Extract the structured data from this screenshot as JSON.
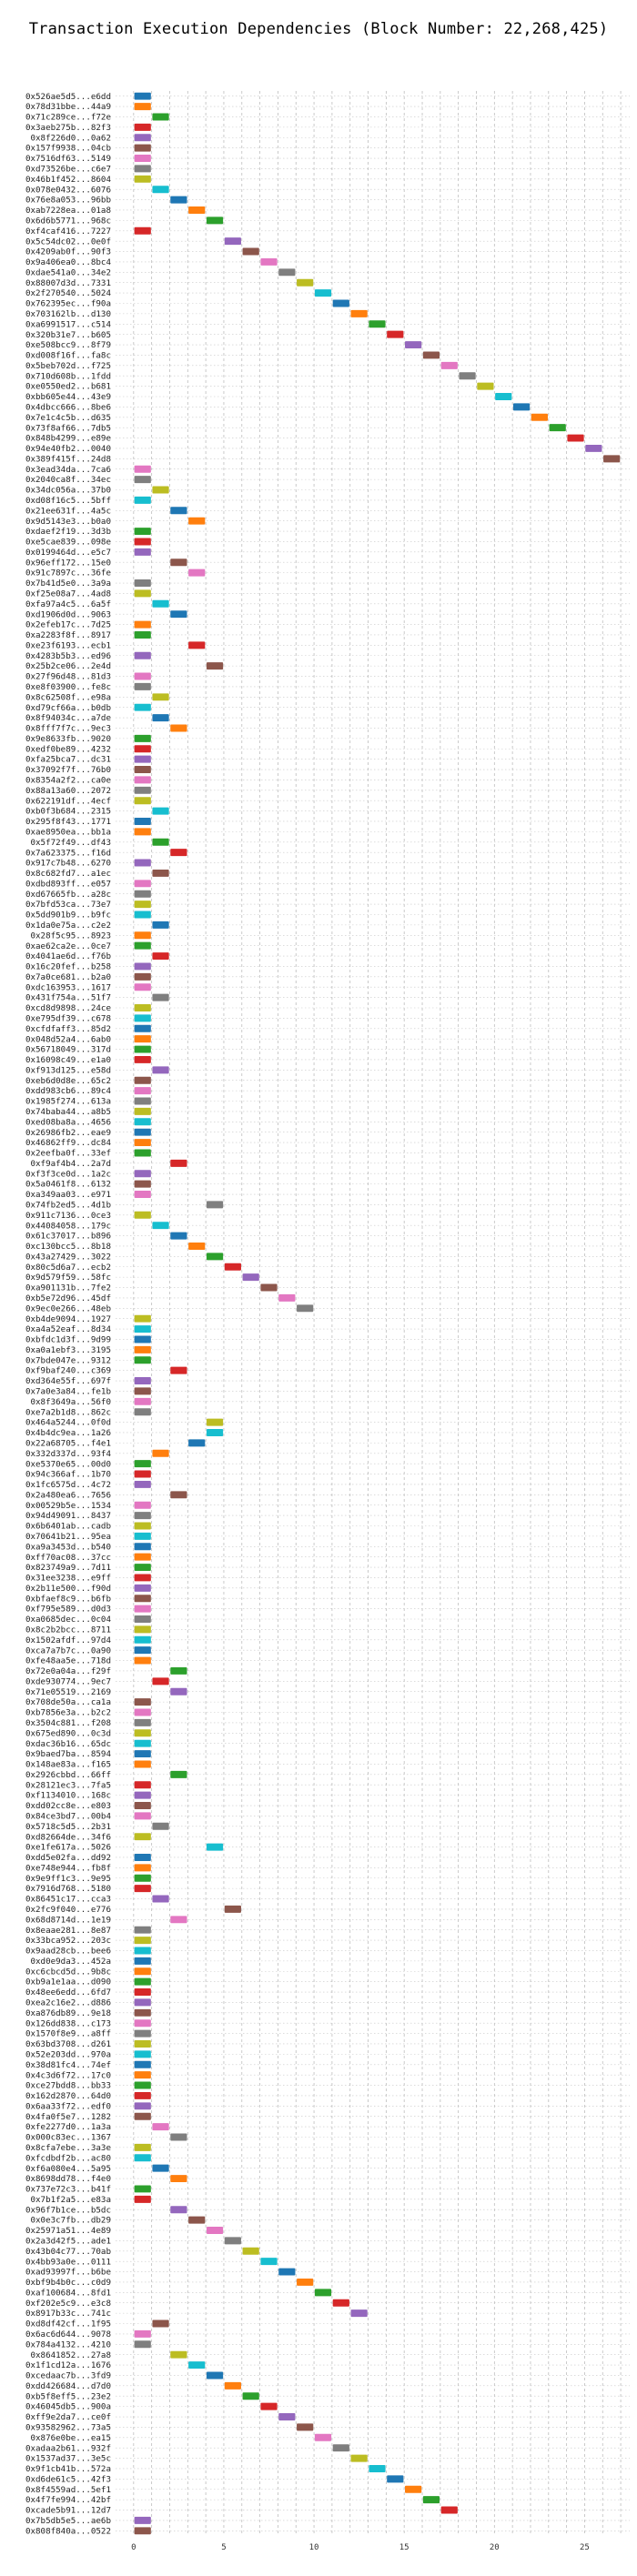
{
  "chart_data": {
    "type": "bar",
    "title": "Transaction Execution Dependencies (Block Number: 22,268,425)",
    "xlabel": "",
    "ylabel": "",
    "xlim": [
      -1,
      27.5
    ],
    "x_ticks": [
      0,
      5,
      10,
      15,
      20,
      25
    ],
    "grid": "vertical dashed lines",
    "palette": [
      "#1f77b4",
      "#ff7f0e",
      "#2ca02c",
      "#d62728",
      "#9467bd",
      "#8c564b",
      "#e377c2",
      "#7f7f7f",
      "#bcbd22",
      "#17becf"
    ],
    "transactions": [
      {
        "label": "0x526ae5d5...e6dd",
        "start": 0
      },
      {
        "label": "0x78d31bbe...44a9",
        "start": 0
      },
      {
        "label": "0x71c289ce...f72e",
        "start": 1
      },
      {
        "label": "0x3aeb275b...82f3",
        "start": 0
      },
      {
        "label": "0x8f226d0...0a62",
        "start": 0
      },
      {
        "label": "0x157f9938...04cb",
        "start": 0
      },
      {
        "label": "0x7516df63...5149",
        "start": 0
      },
      {
        "label": "0xd73526be...c6e7",
        "start": 0
      },
      {
        "label": "0x46b1f452...8604",
        "start": 0
      },
      {
        "label": "0x078e0432...6076",
        "start": 1
      },
      {
        "label": "0x76e8a053...96bb",
        "start": 2
      },
      {
        "label": "0xab7228ea...01a8",
        "start": 3
      },
      {
        "label": "0x6d6b5771...968c",
        "start": 4
      },
      {
        "label": "0xf4caf416...7227",
        "start": 0
      },
      {
        "label": "0x5c54dc02...0e0f",
        "start": 5
      },
      {
        "label": "0x4209ab0f...90f3",
        "start": 6
      },
      {
        "label": "0x9a406ea0...8bc4",
        "start": 7
      },
      {
        "label": "0xdae541a0...34e2",
        "start": 8
      },
      {
        "label": "0x88007d3d...7331",
        "start": 9
      },
      {
        "label": "0x2f270540...5024",
        "start": 10
      },
      {
        "label": "0x762395ec...f90a",
        "start": 11
      },
      {
        "label": "0x703162lb...d130",
        "start": 12
      },
      {
        "label": "0xa6991517...c514",
        "start": 13
      },
      {
        "label": "0x320b31e7...b605",
        "start": 14
      },
      {
        "label": "0xe508bcc9...8f79",
        "start": 15
      },
      {
        "label": "0xd008f16f...fa8c",
        "start": 16
      },
      {
        "label": "0x5beb702d...f725",
        "start": 17
      },
      {
        "label": "0x710d608b...1fdd",
        "start": 18
      },
      {
        "label": "0xe0550ed2...b681",
        "start": 19
      },
      {
        "label": "0xbb605e44...43e9",
        "start": 20
      },
      {
        "label": "0x4dbcc666...8be6",
        "start": 21
      },
      {
        "label": "0x7e1c4c5b...d635",
        "start": 22
      },
      {
        "label": "0x73f8af66...7db5",
        "start": 23
      },
      {
        "label": "0x848b4299...e89e",
        "start": 24
      },
      {
        "label": "0x94e40fb2...0040",
        "start": 25
      },
      {
        "label": "0x389f415f...24d8",
        "start": 26
      },
      {
        "label": "0x3ead34da...7ca6",
        "start": 0
      },
      {
        "label": "0x2040ca8f...34ec",
        "start": 0
      },
      {
        "label": "0x34dc056a...37b0",
        "start": 1
      },
      {
        "label": "0xd08f16c5...5bff",
        "start": 0
      },
      {
        "label": "0x21ee631f...4a5c",
        "start": 2
      },
      {
        "label": "0x9d5143e3...b0a0",
        "start": 3
      },
      {
        "label": "0xdaef2f19...3d3b",
        "start": 0
      },
      {
        "label": "0xe5cae839...098e",
        "start": 0
      },
      {
        "label": "0x0199464d...e5c7",
        "start": 0
      },
      {
        "label": "0x96eff172...15e0",
        "start": 2
      },
      {
        "label": "0x91c7897c...36fe",
        "start": 3
      },
      {
        "label": "0x7b41d5e0...3a9a",
        "start": 0
      },
      {
        "label": "0xf25e08a7...4ad8",
        "start": 0
      },
      {
        "label": "0xfa97a4c5...6a5f",
        "start": 1
      },
      {
        "label": "0xd1906d0d...9063",
        "start": 2
      },
      {
        "label": "0x2efeb17c...7d25",
        "start": 0
      },
      {
        "label": "0xa2283f8f...8917",
        "start": 0
      },
      {
        "label": "0xe23f6193...ecb1",
        "start": 3
      },
      {
        "label": "0x4283b5b3...ed96",
        "start": 0
      },
      {
        "label": "0x25b2ce06...2e4d",
        "start": 4
      },
      {
        "label": "0x27f96d48...81d3",
        "start": 0
      },
      {
        "label": "0xe8f03900...fe8c",
        "start": 0
      },
      {
        "label": "0x8c62508f...e98a",
        "start": 1
      },
      {
        "label": "0xd79cf66a...b0db",
        "start": 0
      },
      {
        "label": "0x8f94034c...a7de",
        "start": 1
      },
      {
        "label": "0x8fff7f7c...9ec3",
        "start": 2
      },
      {
        "label": "0x9e8633fb...9020",
        "start": 0
      },
      {
        "label": "0xedf0be89...4232",
        "start": 0
      },
      {
        "label": "0xfa25bca7...dc31",
        "start": 0
      },
      {
        "label": "0x37092f7f...76b0",
        "start": 0
      },
      {
        "label": "0x8354a2f2...ca0e",
        "start": 0
      },
      {
        "label": "0x88a13a60...2072",
        "start": 0
      },
      {
        "label": "0x622191df...4ecf",
        "start": 0
      },
      {
        "label": "0xb0f3b684...2315",
        "start": 1
      },
      {
        "label": "0x295f8f43...1771",
        "start": 0
      },
      {
        "label": "0xae8950ea...bb1a",
        "start": 0
      },
      {
        "label": "0x5f72f49...df43",
        "start": 1
      },
      {
        "label": "0x7a623375...f16d",
        "start": 2
      },
      {
        "label": "0x917c7b48...6270",
        "start": 0
      },
      {
        "label": "0x8c682fd7...a1ec",
        "start": 1
      },
      {
        "label": "0xdbd893ff...e057",
        "start": 0
      },
      {
        "label": "0xd67665fb...a28c",
        "start": 0
      },
      {
        "label": "0x7bfd53ca...73e7",
        "start": 0
      },
      {
        "label": "0x5dd901b9...b9fc",
        "start": 0
      },
      {
        "label": "0x1da0e75a...c2e2",
        "start": 1
      },
      {
        "label": "0x28f5c95...8923",
        "start": 0
      },
      {
        "label": "0xae62ca2e...0ce7",
        "start": 0
      },
      {
        "label": "0x4041ae6d...f76b",
        "start": 1
      },
      {
        "label": "0x16c20fef...b258",
        "start": 0
      },
      {
        "label": "0x7a0ce681...b2a0",
        "start": 0
      },
      {
        "label": "0xdc163953...1617",
        "start": 0
      },
      {
        "label": "0x431f754a...51f7",
        "start": 1
      },
      {
        "label": "0xcd8d9898...24ce",
        "start": 0
      },
      {
        "label": "0xe795df39...c678",
        "start": 0
      },
      {
        "label": "0xcfdfaff3...85d2",
        "start": 0
      },
      {
        "label": "0x048d52a4...6ab0",
        "start": 0
      },
      {
        "label": "0x56718049...317d",
        "start": 0
      },
      {
        "label": "0x16098c49...e1a0",
        "start": 0
      },
      {
        "label": "0xf913d125...e58d",
        "start": 1
      },
      {
        "label": "0xeb6d0d8e...65c2",
        "start": 0
      },
      {
        "label": "0xdd983cb6...89c4",
        "start": 0
      },
      {
        "label": "0x1985f274...613a",
        "start": 0
      },
      {
        "label": "0x74baba44...a8b5",
        "start": 0
      },
      {
        "label": "0xed08ba8a...4656",
        "start": 0
      },
      {
        "label": "0x26986fb2...eae9",
        "start": 0
      },
      {
        "label": "0x46862ff9...dc84",
        "start": 0
      },
      {
        "label": "0x2eefba0f...33ef",
        "start": 0
      },
      {
        "label": "0xf9af4b4...2a7d",
        "start": 2
      },
      {
        "label": "0xf3f3ce0d...1a2c",
        "start": 0
      },
      {
        "label": "0x5a0461f8...6132",
        "start": 0
      },
      {
        "label": "0xa349aa03...e971",
        "start": 0
      },
      {
        "label": "0x74fb2ed5...4d1b",
        "start": 4
      },
      {
        "label": "0x911c7136...0ce3",
        "start": 0
      },
      {
        "label": "0x44084058...179c",
        "start": 1
      },
      {
        "label": "0x61c37017...b896",
        "start": 2
      },
      {
        "label": "0xc130bcc5...8b18",
        "start": 3
      },
      {
        "label": "0x43a27429...3022",
        "start": 4
      },
      {
        "label": "0x80c5d6a7...ecb2",
        "start": 5
      },
      {
        "label": "0x9d579f59...58fc",
        "start": 6
      },
      {
        "label": "0xa901131b...7fe2",
        "start": 7
      },
      {
        "label": "0xb5e72d96...45df",
        "start": 8
      },
      {
        "label": "0x9ec0e266...48eb",
        "start": 9
      },
      {
        "label": "0xb4de9094...1927",
        "start": 0
      },
      {
        "label": "0xa4a52eaf...8d34",
        "start": 0
      },
      {
        "label": "0xbfdc1d3f...9d99",
        "start": 0
      },
      {
        "label": "0xa0a1ebf3...3195",
        "start": 0
      },
      {
        "label": "0x7bde047e...9312",
        "start": 0
      },
      {
        "label": "0xf9baf240...c369",
        "start": 2
      },
      {
        "label": "0xd364e55f...697f",
        "start": 0
      },
      {
        "label": "0x7a0e3a84...fe1b",
        "start": 0
      },
      {
        "label": "0x8f3649a...56f0",
        "start": 0
      },
      {
        "label": "0xe7a2b1d8...862c",
        "start": 0
      },
      {
        "label": "0x464a5244...0f0d",
        "start": 4
      },
      {
        "label": "0x4b4dc9ea...1a26",
        "start": 4
      },
      {
        "label": "0x22a68705...f4e1",
        "start": 3
      },
      {
        "label": "0x332d337d...93f4",
        "start": 1
      },
      {
        "label": "0xe5370e65...00d0",
        "start": 0
      },
      {
        "label": "0x94c366af...1b70",
        "start": 0
      },
      {
        "label": "0x1fc6575d...4c72",
        "start": 0
      },
      {
        "label": "0x2a480ea6...7656",
        "start": 2
      },
      {
        "label": "0x00529b5e...1534",
        "start": 0
      },
      {
        "label": "0x94d49091...8437",
        "start": 0
      },
      {
        "label": "0x6b6401ab...cadb",
        "start": 0
      },
      {
        "label": "0x70641b21...95ea",
        "start": 0
      },
      {
        "label": "0xa9a3453d...b540",
        "start": 0
      },
      {
        "label": "0xff70ac08...37cc",
        "start": 0
      },
      {
        "label": "0x823749a9...7d11",
        "start": 0
      },
      {
        "label": "0x31ee3238...e9ff",
        "start": 0
      },
      {
        "label": "0x2b11e500...f90d",
        "start": 0
      },
      {
        "label": "0xbfaef8c9...b6fb",
        "start": 0
      },
      {
        "label": "0xf795e589...d0d3",
        "start": 0
      },
      {
        "label": "0xa0685dec...0c04",
        "start": 0
      },
      {
        "label": "0x8c2b2bcc...8711",
        "start": 0
      },
      {
        "label": "0x1502afdf...97d4",
        "start": 0
      },
      {
        "label": "0xca7a7b7c...0a90",
        "start": 0
      },
      {
        "label": "0xfe48aa5e...718d",
        "start": 0
      },
      {
        "label": "0x72e0a04a...f29f",
        "start": 2
      },
      {
        "label": "0xde930774...9ec7",
        "start": 1
      },
      {
        "label": "0x71e05519...2169",
        "start": 2
      },
      {
        "label": "0x708de50a...ca1a",
        "start": 0
      },
      {
        "label": "0xb7856e3a...b2c2",
        "start": 0
      },
      {
        "label": "0x3504c881...f208",
        "start": 0
      },
      {
        "label": "0x675ed890...0c3d",
        "start": 0
      },
      {
        "label": "0xdac36b16...65dc",
        "start": 0
      },
      {
        "label": "0x9baed7ba...8594",
        "start": 0
      },
      {
        "label": "0x148ae83a...f165",
        "start": 0
      },
      {
        "label": "0x2926cbbd...66ff",
        "start": 2
      },
      {
        "label": "0x28121ec3...7fa5",
        "start": 0
      },
      {
        "label": "0xf1134010...168c",
        "start": 0
      },
      {
        "label": "0xdd02cc8e...e803",
        "start": 0
      },
      {
        "label": "0x84ce3bd7...00b4",
        "start": 0
      },
      {
        "label": "0x5718c5d5...2b31",
        "start": 1
      },
      {
        "label": "0xd82664de...34f6",
        "start": 0
      },
      {
        "label": "0xe1fe617a...5026",
        "start": 4
      },
      {
        "label": "0xdd5e02fa...dd92",
        "start": 0
      },
      {
        "label": "0xe748e944...fb8f",
        "start": 0
      },
      {
        "label": "0x9e9ff1c3...9e95",
        "start": 0
      },
      {
        "label": "0x7916d768...5180",
        "start": 0
      },
      {
        "label": "0x86451c17...cca3",
        "start": 1
      },
      {
        "label": "0x2fc9f040...e776",
        "start": 5
      },
      {
        "label": "0x68d8714d...1e19",
        "start": 2
      },
      {
        "label": "0x8eaae281...8e87",
        "start": 0
      },
      {
        "label": "0x33bca952...203c",
        "start": 0
      },
      {
        "label": "0x9aad28cb...bee6",
        "start": 0
      },
      {
        "label": "0xd0e9da3...452a",
        "start": 0
      },
      {
        "label": "0xc6cbcd5d...9b8c",
        "start": 0
      },
      {
        "label": "0xb9a1e1aa...d090",
        "start": 0
      },
      {
        "label": "0x48ee6edd...6fd7",
        "start": 0
      },
      {
        "label": "0xea2c16e2...d886",
        "start": 0
      },
      {
        "label": "0xa876db89...9e18",
        "start": 0
      },
      {
        "label": "0x126dd838...c173",
        "start": 0
      },
      {
        "label": "0x1570f8e9...a8ff",
        "start": 0
      },
      {
        "label": "0x63bd3708...d261",
        "start": 0
      },
      {
        "label": "0x52e203dd...970a",
        "start": 0
      },
      {
        "label": "0x38d81fc4...74ef",
        "start": 0
      },
      {
        "label": "0x4c3d6f72...17c0",
        "start": 0
      },
      {
        "label": "0xce27bdd8...bb33",
        "start": 0
      },
      {
        "label": "0x162d2870...64d0",
        "start": 0
      },
      {
        "label": "0x6aa33f72...edf0",
        "start": 0
      },
      {
        "label": "0x4fa0f5e7...1282",
        "start": 0
      },
      {
        "label": "0xfe2277d0...1a3a",
        "start": 1
      },
      {
        "label": "0x000c83ec...1367",
        "start": 2
      },
      {
        "label": "0x8cfa7ebe...3a3e",
        "start": 0
      },
      {
        "label": "0xfcdbdf2b...ac80",
        "start": 0
      },
      {
        "label": "0xf6a080e4...5a95",
        "start": 1
      },
      {
        "label": "0x8698dd78...f4e0",
        "start": 2
      },
      {
        "label": "0x737e72c3...b41f",
        "start": 0
      },
      {
        "label": "0x7b1f2a5...e83a",
        "start": 0
      },
      {
        "label": "0x96f7b1ce...b5dc",
        "start": 2
      },
      {
        "label": "0x0e3c7fb...db29",
        "start": 3
      },
      {
        "label": "0x25971a51...4e89",
        "start": 4
      },
      {
        "label": "0x2a3d42f5...ade1",
        "start": 5
      },
      {
        "label": "0x43b04c77...70ab",
        "start": 6
      },
      {
        "label": "0x4bb93a0e...0111",
        "start": 7
      },
      {
        "label": "0xad93997f...b6be",
        "start": 8
      },
      {
        "label": "0xbf9b4b0c...c0d9",
        "start": 9
      },
      {
        "label": "0xaf100684...8fd1",
        "start": 10
      },
      {
        "label": "0xf202e5c9...e3c8",
        "start": 11
      },
      {
        "label": "0x8917b33c...741c",
        "start": 12
      },
      {
        "label": "0xd8df42cf...1f95",
        "start": 1
      },
      {
        "label": "0x6ac6d644...9078",
        "start": 0
      },
      {
        "label": "0x784a4132...4210",
        "start": 0
      },
      {
        "label": "0x8641852...27a8",
        "start": 2
      },
      {
        "label": "0x1f1cd12a...1676",
        "start": 3
      },
      {
        "label": "0xcedaac7b...3fd9",
        "start": 4
      },
      {
        "label": "0xdd426684...d7d0",
        "start": 5
      },
      {
        "label": "0xb5f8eff5...23e2",
        "start": 6
      },
      {
        "label": "0x46045db5...900a",
        "start": 7
      },
      {
        "label": "0xff9e2da7...ce0f",
        "start": 8
      },
      {
        "label": "0x93582962...73a5",
        "start": 9
      },
      {
        "label": "0x876e0be...ea15",
        "start": 10
      },
      {
        "label": "0xadaa2b61...932f",
        "start": 11
      },
      {
        "label": "0x1537ad37...3e5c",
        "start": 12
      },
      {
        "label": "0x9f1cb41b...572a",
        "start": 13
      },
      {
        "label": "0xd6de61c5...42f3",
        "start": 14
      },
      {
        "label": "0x8f4559ad...5ef1",
        "start": 15
      },
      {
        "label": "0x4f7fe994...42bf",
        "start": 16
      },
      {
        "label": "0xcade5b91...12d7",
        "start": 17
      },
      {
        "label": "0x7b5db5e5...ae6b",
        "start": 0
      },
      {
        "label": "0x808f840a...0522",
        "start": 0
      }
    ]
  }
}
